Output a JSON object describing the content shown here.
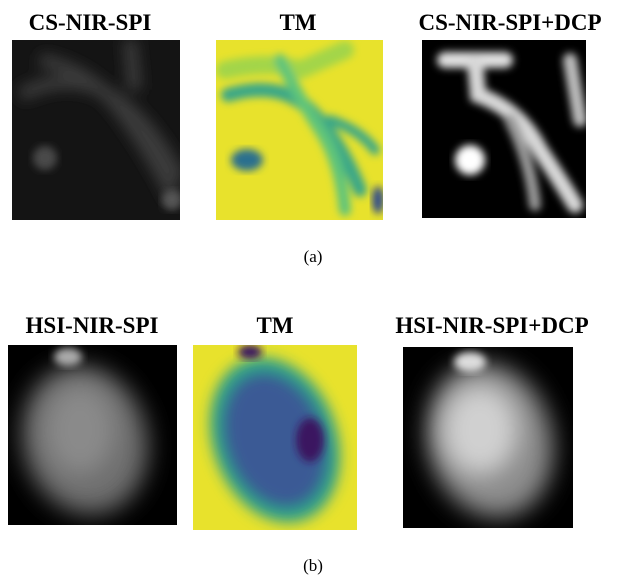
{
  "panels": [
    {
      "label": "(a)",
      "images": [
        {
          "title": "CS-NIR-SPI"
        },
        {
          "title": "TM"
        },
        {
          "title": "CS-NIR-SPI+DCP"
        }
      ]
    },
    {
      "label": "(b)",
      "images": [
        {
          "title": "HSI-NIR-SPI"
        },
        {
          "title": "TM"
        },
        {
          "title": "HSI-NIR-SPI+DCP"
        }
      ]
    }
  ]
}
